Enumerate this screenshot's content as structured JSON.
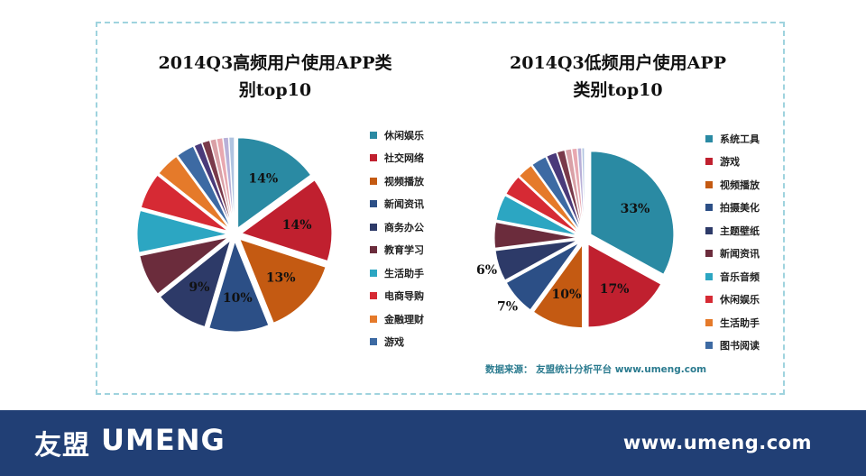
{
  "chart_data": [
    {
      "type": "pie",
      "title": "2014Q3高频用户使用APP类别top10",
      "title_lines": [
        "2014Q3高频用户使用APP类",
        "别top10"
      ],
      "legend_placement": "right",
      "categories": [
        "休闲娱乐",
        "社交网络",
        "视频播放",
        "新闻资讯",
        "商务办公",
        "教育学习",
        "生活助手",
        "电商导购",
        "金融理财",
        "游戏"
      ],
      "values": [
        14,
        14,
        13,
        10,
        9,
        7,
        7,
        6,
        4,
        3,
        1.3,
        1.3,
        1,
        1,
        0.9,
        0.9
      ],
      "labels": [
        "14%",
        "14%",
        "13%",
        "10%",
        "9%",
        "",
        "",
        "",
        "",
        "",
        "",
        "",
        "",
        "",
        "",
        ""
      ],
      "colors": [
        "#2a8aa3",
        "#c0202f",
        "#c45a12",
        "#2c4f86",
        "#2d3a68",
        "#6b2c3c",
        "#2ca6c2",
        "#d62a34",
        "#e57a2a",
        "#3d6aa3",
        "#4a3a7a",
        "#7a3a4a",
        "#d9a0a6",
        "#e8a8b0",
        "#b8b0d8",
        "#b0c4e0"
      ]
    },
    {
      "type": "pie",
      "title": "2014Q3低频用户使用APP类别top10",
      "title_lines": [
        "2014Q3低频用户使用APP",
        "类别top10"
      ],
      "legend_placement": "right",
      "categories": [
        "系统工具",
        "游戏",
        "视频播放",
        "拍摄美化",
        "主题壁纸",
        "新闻资讯",
        "音乐音频",
        "休闲娱乐",
        "生活助手",
        "图书阅读"
      ],
      "values": [
        33,
        17,
        10,
        7,
        6,
        5,
        5,
        4,
        3,
        3,
        2,
        1.5,
        1.2,
        1,
        0.8,
        0.5
      ],
      "labels": [
        "33%",
        "17%",
        "10%",
        "7%",
        "6%",
        "",
        "",
        "",
        "",
        "",
        "",
        "",
        "",
        "",
        "",
        ""
      ],
      "colors": [
        "#2a8aa3",
        "#c0202f",
        "#c45a12",
        "#2c4f86",
        "#2d3a68",
        "#6b2c3c",
        "#2ca6c2",
        "#d62a34",
        "#e57a2a",
        "#3d6aa3",
        "#4a3a7a",
        "#7a3a4a",
        "#d9a0a6",
        "#e8a8b0",
        "#b8b0d8",
        "#b0c4e0"
      ]
    }
  ],
  "source": "数据来源： 友盟统计分析平台 www.umeng.com",
  "footer": {
    "logo_cn": "友盟",
    "logo_en": "UMENG",
    "url": "www.umeng.com"
  }
}
